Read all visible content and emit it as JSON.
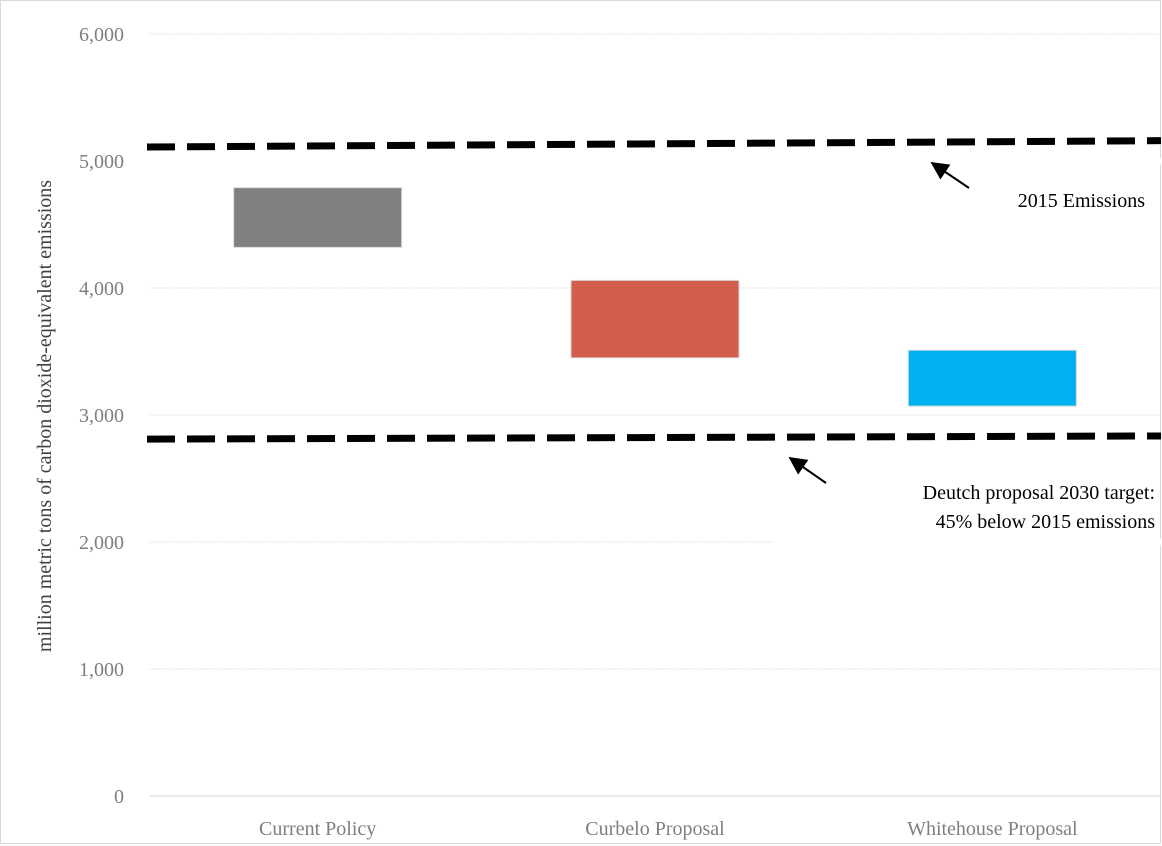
{
  "chart_data": {
    "type": "bar",
    "subtype": "floating-range",
    "categories": [
      "Current Policy",
      "Curbelo Proposal",
      "Whitehouse Proposal"
    ],
    "ranges": [
      {
        "category": "Current Policy",
        "low": 4320,
        "high": 4790,
        "color": "#808080"
      },
      {
        "category": "Curbelo Proposal",
        "low": 3450,
        "high": 4060,
        "color": "#d25f4e"
      },
      {
        "category": "Whitehouse Proposal",
        "low": 3070,
        "high": 3510,
        "color": "#00b0f0"
      }
    ],
    "reference_lines": [
      {
        "name": "2015 Emissions",
        "start_value": 5110,
        "end_value": 5160,
        "style": "dashed",
        "color": "#000000"
      },
      {
        "name": "Deutch proposal 2030 target",
        "start_value": 2810,
        "end_value": 2835,
        "style": "dashed",
        "color": "#000000"
      }
    ],
    "annotations": [
      {
        "lines": [
          "2015 Emissions"
        ]
      },
      {
        "lines": [
          "Deutch proposal 2030 target:",
          "45% below 2015 emissions"
        ]
      }
    ],
    "title": "",
    "xlabel": "",
    "ylabel": "million metric tons of carbon dioxide-equivalent emissions",
    "ylim": [
      0,
      6000
    ],
    "yticks": [
      "0",
      "1,000",
      "2,000",
      "3,000",
      "4,000",
      "5,000",
      "6,000"
    ],
    "grid": true,
    "legend": "none"
  }
}
